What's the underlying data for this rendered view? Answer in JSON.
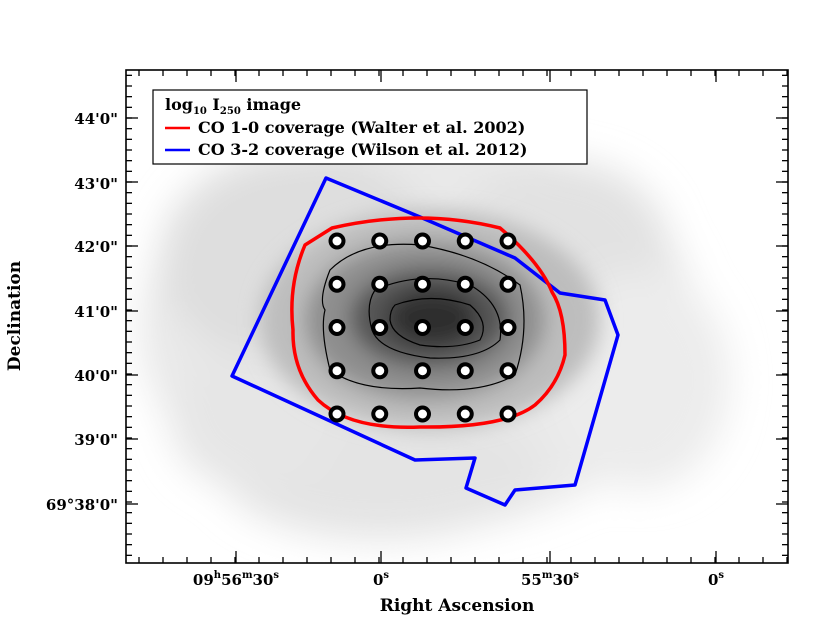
{
  "chart_data": {
    "type": "map",
    "title": "",
    "xlabel": "Right Ascension",
    "ylabel": "Declination",
    "x_ticks": [
      {
        "label": "09",
        "h": "h",
        "m_val": "56",
        "m": "m",
        "s_val": "30",
        "s": "s"
      },
      {
        "label": "0",
        "s": "s"
      },
      {
        "label": "55",
        "m": "m",
        "s_val": "30",
        "s": "s"
      },
      {
        "label": "0",
        "s": "s"
      }
    ],
    "y_ticks": [
      "44'0\"",
      "43'0\"",
      "42'0\"",
      "41'0\"",
      "40'0\"",
      "39'0\"",
      "69°38'0\""
    ],
    "legend": {
      "position": "top-left",
      "entries": [
        {
          "label_pre": "log",
          "label_sub": "10",
          "label_mid": " I",
          "label_sub2": "250",
          "label_post": " image",
          "color": ""
        },
        {
          "label": "CO 1-0 coverage (Walter et al. 2002)",
          "color": "#ff0000"
        },
        {
          "label": "CO 3-2 coverage (Wilson et al. 2012)",
          "color": "#0000ff"
        }
      ]
    },
    "image_series": "log10 I250 image (grayscale)",
    "series": [
      {
        "name": "CO 1-0 coverage (Walter et al. 2002)",
        "color": "#ff0000"
      },
      {
        "name": "CO 3-2 coverage (Wilson et al. 2012)",
        "color": "#0000ff"
      }
    ],
    "sample_points": {
      "rows": 5,
      "cols": 5,
      "count": 25,
      "note": "circular apertures in 5x5 grid"
    }
  }
}
